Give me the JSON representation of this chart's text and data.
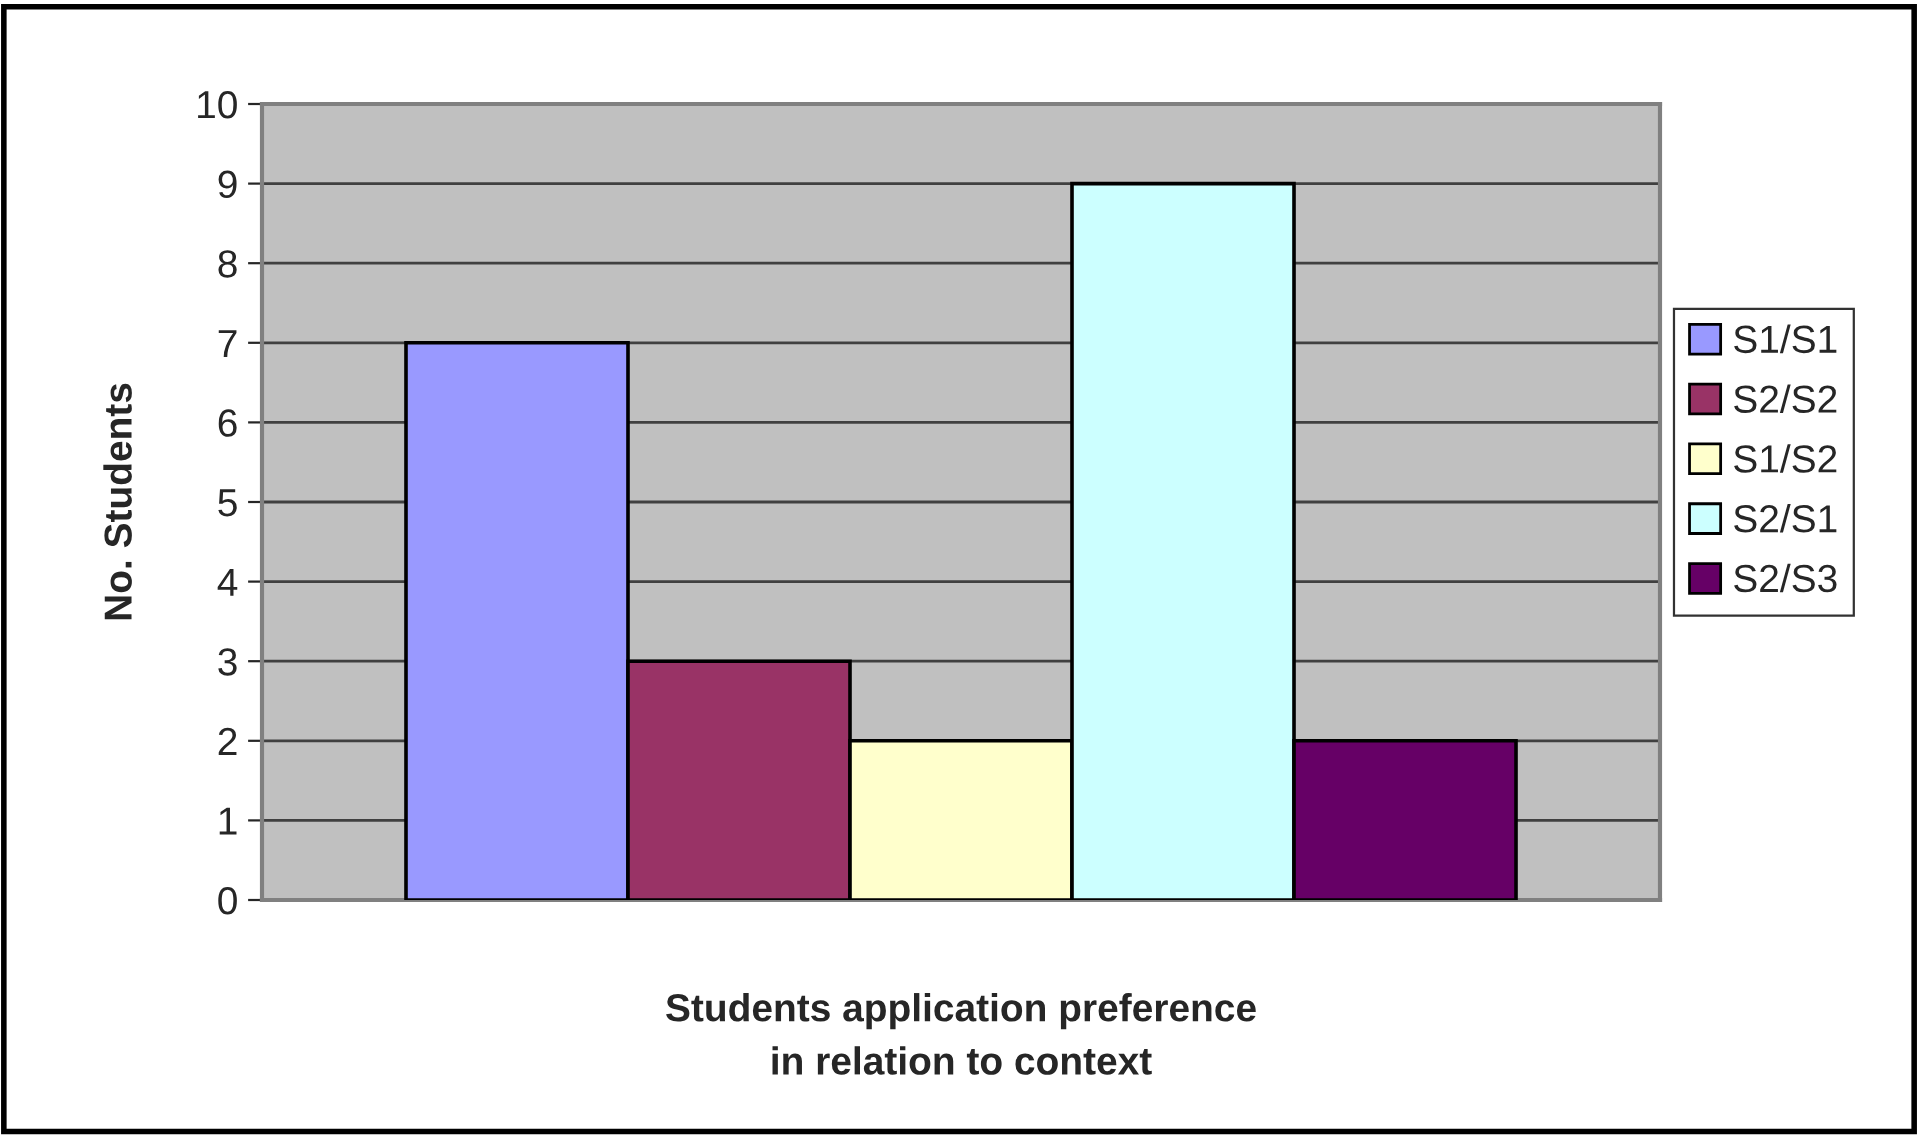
{
  "chart_data": {
    "type": "bar",
    "xlabel": "Students application preference\nin relation to context",
    "ylabel": "No. Students",
    "categories": [
      null
    ],
    "series": [
      {
        "name": "S1/S1",
        "color": "#9999ff",
        "values": [
          7
        ]
      },
      {
        "name": "S2/S2",
        "color": "#993366",
        "values": [
          3
        ]
      },
      {
        "name": "S1/S2",
        "color": "#ffffcc",
        "values": [
          2
        ]
      },
      {
        "name": "S2/S1",
        "color": "#ccffff",
        "values": [
          9
        ]
      },
      {
        "name": "S2/S3",
        "color": "#660066",
        "values": [
          2
        ]
      }
    ],
    "ylim": [
      0,
      10
    ],
    "yticks": [
      0,
      1,
      2,
      3,
      4,
      5,
      6,
      7,
      8,
      9,
      10
    ],
    "grid": "y",
    "legend": "right"
  }
}
